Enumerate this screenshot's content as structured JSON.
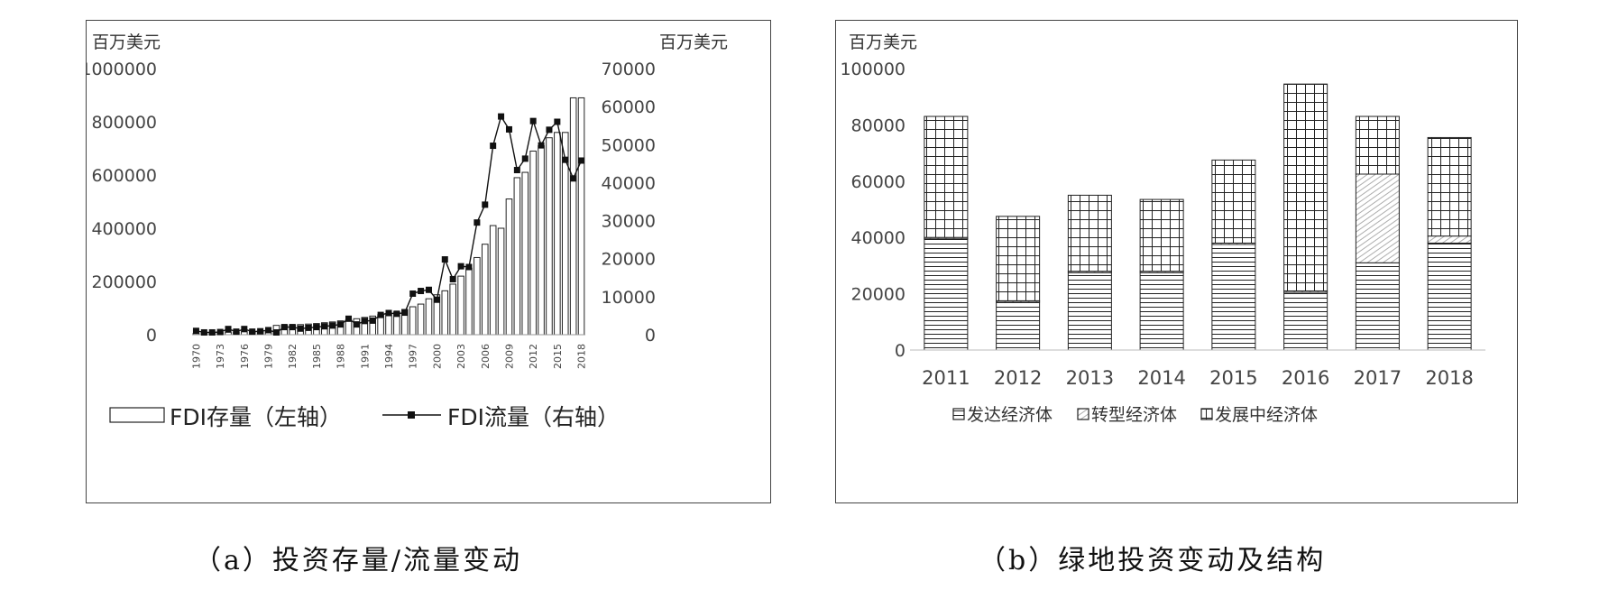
{
  "chart_data": [
    {
      "type": "bar+line",
      "unit_left": "百万美元",
      "unit_right": "百万美元",
      "left_ylim": [
        0,
        1000000
      ],
      "right_ylim": [
        0,
        70000
      ],
      "left_ticks": [
        "1000000",
        "800000",
        "600000",
        "400000",
        "200000",
        "0"
      ],
      "right_ticks": [
        "70000",
        "60000",
        "50000",
        "40000",
        "30000",
        "20000",
        "10000",
        "0"
      ],
      "x": [
        1970,
        1971,
        1972,
        1973,
        1974,
        1975,
        1976,
        1977,
        1978,
        1979,
        1980,
        1981,
        1982,
        1983,
        1984,
        1985,
        1986,
        1987,
        1988,
        1989,
        1990,
        1991,
        1992,
        1993,
        1994,
        1995,
        1996,
        1997,
        1998,
        1999,
        2000,
        2001,
        2002,
        2003,
        2004,
        2005,
        2006,
        2007,
        2008,
        2009,
        2010,
        2011,
        2012,
        2013,
        2014,
        2015,
        2016,
        2017,
        2018
      ],
      "x_tick_labels": [
        "1970",
        "1973",
        "1976",
        "1979",
        "1982",
        "1985",
        "1988",
        "1991",
        "1994",
        "1997",
        "2000",
        "2003",
        "2006",
        "2009",
        "2012",
        "2015",
        "2018"
      ],
      "series": [
        {
          "name": "FDI存量（左轴）",
          "kind": "bar",
          "values": [
            5000,
            6000,
            7000,
            8000,
            9000,
            10000,
            11000,
            12000,
            13000,
            15000,
            35000,
            36000,
            37000,
            38000,
            40000,
            42000,
            45000,
            48000,
            52000,
            55000,
            60000,
            65000,
            70000,
            75000,
            80000,
            85000,
            95000,
            105000,
            115000,
            135000,
            150000,
            165000,
            190000,
            220000,
            250000,
            290000,
            340000,
            410000,
            400000,
            510000,
            590000,
            610000,
            690000,
            710000,
            740000,
            760000,
            760000,
            890000,
            890000
          ]
        },
        {
          "name": "FDI流量（右轴）",
          "kind": "line",
          "values": [
            1000,
            600,
            600,
            700,
            1500,
            800,
            1500,
            800,
            900,
            1200,
            600,
            2000,
            2000,
            1600,
            1800,
            2000,
            2200,
            2400,
            2700,
            4200,
            2700,
            3600,
            3700,
            5200,
            5700,
            5500,
            5800,
            10800,
            11500,
            11800,
            9200,
            19800,
            14600,
            18000,
            17800,
            29500,
            34200,
            49700,
            57400,
            54000,
            43300,
            46300,
            56200,
            49800,
            53900,
            56000,
            46000,
            41100,
            45800
          ]
        }
      ],
      "legend": [
        "FDI存量（左轴）",
        "FDI流量（右轴）"
      ],
      "legend_position": "bottom"
    },
    {
      "type": "stacked-bar",
      "unit": "百万美元",
      "ylim": [
        0,
        100000
      ],
      "y_ticks": [
        "100000",
        "80000",
        "60000",
        "40000",
        "20000",
        "0"
      ],
      "categories": [
        "2011",
        "2012",
        "2013",
        "2014",
        "2015",
        "2016",
        "2017",
        "2018"
      ],
      "series": [
        {
          "name": "发达经济体",
          "pattern": "horizontal-lines",
          "values": [
            39500,
            17000,
            27500,
            27500,
            37500,
            20500,
            31000,
            38000
          ]
        },
        {
          "name": "转型经济体",
          "pattern": "diagonal-hatch",
          "values": [
            500,
            500,
            500,
            500,
            500,
            500,
            31500,
            2500
          ]
        },
        {
          "name": "发展中经济体",
          "pattern": "grid",
          "values": [
            43000,
            30000,
            27000,
            25500,
            29500,
            73500,
            20500,
            35000
          ]
        }
      ],
      "legend_position": "bottom"
    }
  ],
  "captions": {
    "a": "（a）投资存量/流量变动",
    "b": "（b）绿地投资变动及结构"
  }
}
